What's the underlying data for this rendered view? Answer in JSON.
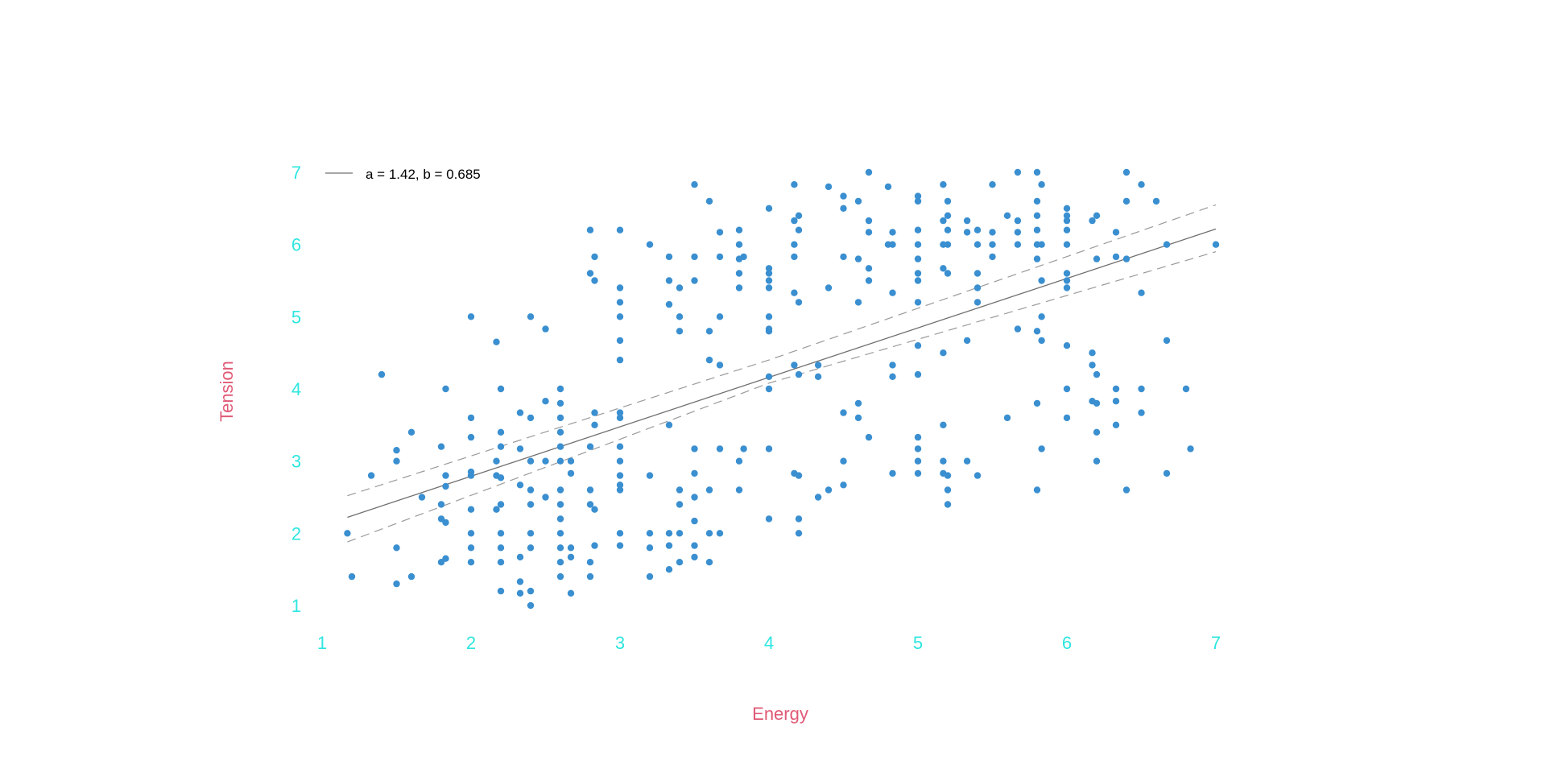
{
  "chart_data": {
    "type": "scatter",
    "title": "",
    "xlabel": "Energy",
    "ylabel": "Tension",
    "xlim": [
      1,
      7
    ],
    "ylim": [
      1,
      7
    ],
    "x_ticks": [
      "1",
      "2",
      "3",
      "4",
      "5",
      "6",
      "7"
    ],
    "y_ticks": [
      "1",
      "2",
      "3",
      "4",
      "5",
      "6",
      "7"
    ],
    "grid": false,
    "legend_position": "top-left",
    "legend": {
      "label": "a = 1.42, b = 0.685"
    },
    "colors": {
      "points": "#3a8fd0",
      "fit_line": "#707070",
      "confidence_band": "#9a9a9a",
      "tick_labels": "#2ee6e0",
      "axis_titles": "#e05a76"
    },
    "fit": {
      "intercept": 1.42,
      "slope": 0.685,
      "lower_band": [
        [
          1.17,
          1.88
        ],
        [
          4.0,
          4.08
        ],
        [
          7.0,
          5.9
        ]
      ],
      "upper_band": [
        [
          1.17,
          2.52
        ],
        [
          4.0,
          4.4
        ],
        [
          7.0,
          6.55
        ]
      ]
    },
    "points": [
      [
        1.17,
        2.0
      ],
      [
        1.2,
        1.4
      ],
      [
        1.33,
        2.8
      ],
      [
        1.4,
        4.2
      ],
      [
        1.5,
        3.15
      ],
      [
        1.5,
        3.0
      ],
      [
        1.5,
        1.8
      ],
      [
        1.5,
        1.3
      ],
      [
        1.6,
        3.4
      ],
      [
        1.6,
        1.4
      ],
      [
        1.67,
        2.5
      ],
      [
        1.8,
        3.2
      ],
      [
        1.8,
        2.4
      ],
      [
        1.8,
        2.2
      ],
      [
        1.8,
        1.6
      ],
      [
        1.83,
        4.0
      ],
      [
        1.83,
        2.8
      ],
      [
        1.83,
        2.65
      ],
      [
        1.83,
        2.15
      ],
      [
        1.83,
        1.65
      ],
      [
        2.0,
        5.0
      ],
      [
        2.0,
        3.6
      ],
      [
        2.0,
        3.33
      ],
      [
        2.0,
        2.85
      ],
      [
        2.0,
        2.8
      ],
      [
        2.0,
        2.33
      ],
      [
        2.0,
        2.0
      ],
      [
        2.0,
        1.8
      ],
      [
        2.0,
        1.6
      ],
      [
        2.17,
        4.65
      ],
      [
        2.17,
        3.0
      ],
      [
        2.17,
        2.8
      ],
      [
        2.17,
        2.33
      ],
      [
        2.2,
        4.0
      ],
      [
        2.2,
        3.4
      ],
      [
        2.2,
        3.2
      ],
      [
        2.2,
        2.77
      ],
      [
        2.2,
        2.4
      ],
      [
        2.2,
        2.0
      ],
      [
        2.2,
        1.8
      ],
      [
        2.2,
        1.6
      ],
      [
        2.2,
        1.2
      ],
      [
        2.33,
        3.67
      ],
      [
        2.33,
        3.17
      ],
      [
        2.33,
        2.67
      ],
      [
        2.33,
        1.67
      ],
      [
        2.33,
        1.33
      ],
      [
        2.33,
        1.17
      ],
      [
        2.4,
        5.0
      ],
      [
        2.4,
        3.6
      ],
      [
        2.4,
        3.0
      ],
      [
        2.4,
        2.6
      ],
      [
        2.4,
        2.4
      ],
      [
        2.4,
        2.0
      ],
      [
        2.4,
        1.8
      ],
      [
        2.4,
        1.2
      ],
      [
        2.4,
        1.0
      ],
      [
        2.5,
        4.83
      ],
      [
        2.5,
        3.83
      ],
      [
        2.5,
        3.0
      ],
      [
        2.5,
        2.5
      ],
      [
        2.6,
        4.0
      ],
      [
        2.6,
        3.8
      ],
      [
        2.6,
        3.6
      ],
      [
        2.6,
        3.4
      ],
      [
        2.6,
        3.2
      ],
      [
        2.6,
        3.0
      ],
      [
        2.6,
        2.6
      ],
      [
        2.6,
        2.4
      ],
      [
        2.6,
        2.2
      ],
      [
        2.6,
        2.0
      ],
      [
        2.6,
        1.8
      ],
      [
        2.6,
        1.6
      ],
      [
        2.6,
        1.4
      ],
      [
        2.67,
        3.0
      ],
      [
        2.67,
        2.83
      ],
      [
        2.67,
        1.8
      ],
      [
        2.67,
        1.67
      ],
      [
        2.67,
        1.17
      ],
      [
        2.8,
        6.2
      ],
      [
        2.8,
        5.6
      ],
      [
        2.8,
        3.2
      ],
      [
        2.8,
        2.6
      ],
      [
        2.8,
        2.4
      ],
      [
        2.8,
        1.6
      ],
      [
        2.8,
        1.4
      ],
      [
        2.83,
        5.83
      ],
      [
        2.83,
        5.5
      ],
      [
        2.83,
        3.67
      ],
      [
        2.83,
        3.5
      ],
      [
        2.83,
        2.33
      ],
      [
        2.83,
        1.83
      ],
      [
        3.0,
        6.2
      ],
      [
        3.0,
        5.4
      ],
      [
        3.0,
        5.2
      ],
      [
        3.0,
        5.0
      ],
      [
        3.0,
        4.67
      ],
      [
        3.0,
        4.4
      ],
      [
        3.0,
        3.67
      ],
      [
        3.0,
        3.6
      ],
      [
        3.0,
        3.2
      ],
      [
        3.0,
        3.0
      ],
      [
        3.0,
        2.8
      ],
      [
        3.0,
        2.67
      ],
      [
        3.0,
        2.6
      ],
      [
        3.0,
        2.0
      ],
      [
        3.0,
        1.83
      ],
      [
        3.2,
        6.0
      ],
      [
        3.2,
        2.8
      ],
      [
        3.2,
        2.0
      ],
      [
        3.2,
        1.8
      ],
      [
        3.2,
        1.4
      ],
      [
        3.33,
        5.83
      ],
      [
        3.33,
        5.5
      ],
      [
        3.33,
        5.17
      ],
      [
        3.33,
        3.5
      ],
      [
        3.33,
        2.0
      ],
      [
        3.33,
        1.83
      ],
      [
        3.33,
        1.5
      ],
      [
        3.4,
        5.4
      ],
      [
        3.4,
        5.0
      ],
      [
        3.4,
        4.8
      ],
      [
        3.4,
        2.6
      ],
      [
        3.4,
        2.4
      ],
      [
        3.4,
        2.0
      ],
      [
        3.4,
        1.6
      ],
      [
        3.5,
        6.83
      ],
      [
        3.5,
        5.83
      ],
      [
        3.5,
        5.5
      ],
      [
        3.5,
        3.17
      ],
      [
        3.5,
        2.83
      ],
      [
        3.5,
        2.5
      ],
      [
        3.5,
        2.17
      ],
      [
        3.5,
        1.83
      ],
      [
        3.5,
        1.67
      ],
      [
        3.6,
        6.6
      ],
      [
        3.6,
        4.8
      ],
      [
        3.6,
        4.4
      ],
      [
        3.6,
        2.6
      ],
      [
        3.6,
        2.0
      ],
      [
        3.6,
        1.6
      ],
      [
        3.67,
        6.17
      ],
      [
        3.67,
        5.83
      ],
      [
        3.67,
        5.0
      ],
      [
        3.67,
        4.33
      ],
      [
        3.67,
        3.17
      ],
      [
        3.67,
        2.0
      ],
      [
        3.8,
        6.2
      ],
      [
        3.8,
        6.0
      ],
      [
        3.8,
        5.8
      ],
      [
        3.8,
        5.6
      ],
      [
        3.8,
        5.4
      ],
      [
        3.8,
        3.0
      ],
      [
        3.8,
        2.6
      ],
      [
        3.83,
        5.83
      ],
      [
        3.83,
        3.17
      ],
      [
        4.0,
        6.5
      ],
      [
        4.0,
        5.67
      ],
      [
        4.0,
        5.6
      ],
      [
        4.0,
        5.5
      ],
      [
        4.0,
        5.4
      ],
      [
        4.0,
        5.0
      ],
      [
        4.0,
        4.83
      ],
      [
        4.0,
        4.8
      ],
      [
        4.0,
        4.17
      ],
      [
        4.0,
        4.0
      ],
      [
        4.0,
        3.17
      ],
      [
        4.0,
        2.2
      ],
      [
        4.17,
        6.83
      ],
      [
        4.17,
        6.33
      ],
      [
        4.17,
        6.0
      ],
      [
        4.17,
        5.83
      ],
      [
        4.17,
        5.33
      ],
      [
        4.17,
        4.33
      ],
      [
        4.17,
        2.83
      ],
      [
        4.2,
        6.4
      ],
      [
        4.2,
        6.2
      ],
      [
        4.2,
        5.2
      ],
      [
        4.2,
        4.2
      ],
      [
        4.2,
        2.8
      ],
      [
        4.2,
        2.2
      ],
      [
        4.2,
        2.0
      ],
      [
        4.33,
        4.33
      ],
      [
        4.33,
        4.17
      ],
      [
        4.33,
        2.5
      ],
      [
        4.4,
        6.8
      ],
      [
        4.4,
        5.4
      ],
      [
        4.4,
        2.6
      ],
      [
        4.5,
        6.67
      ],
      [
        4.5,
        6.5
      ],
      [
        4.5,
        5.83
      ],
      [
        4.5,
        3.67
      ],
      [
        4.5,
        3.0
      ],
      [
        4.5,
        2.67
      ],
      [
        4.6,
        6.6
      ],
      [
        4.6,
        5.8
      ],
      [
        4.6,
        5.2
      ],
      [
        4.6,
        3.8
      ],
      [
        4.6,
        3.6
      ],
      [
        4.67,
        7.0
      ],
      [
        4.67,
        6.33
      ],
      [
        4.67,
        6.17
      ],
      [
        4.67,
        5.67
      ],
      [
        4.67,
        5.5
      ],
      [
        4.67,
        3.33
      ],
      [
        4.8,
        6.8
      ],
      [
        4.8,
        6.0
      ],
      [
        4.83,
        6.17
      ],
      [
        4.83,
        6.0
      ],
      [
        4.83,
        5.33
      ],
      [
        4.83,
        4.33
      ],
      [
        4.83,
        4.17
      ],
      [
        4.83,
        2.83
      ],
      [
        5.0,
        6.67
      ],
      [
        5.0,
        6.6
      ],
      [
        5.0,
        6.2
      ],
      [
        5.0,
        6.0
      ],
      [
        5.0,
        5.8
      ],
      [
        5.0,
        5.6
      ],
      [
        5.0,
        5.5
      ],
      [
        5.0,
        5.2
      ],
      [
        5.0,
        4.6
      ],
      [
        5.0,
        4.2
      ],
      [
        5.0,
        3.33
      ],
      [
        5.0,
        3.17
      ],
      [
        5.0,
        3.0
      ],
      [
        5.0,
        2.83
      ],
      [
        5.17,
        6.83
      ],
      [
        5.17,
        6.33
      ],
      [
        5.17,
        6.0
      ],
      [
        5.17,
        5.67
      ],
      [
        5.17,
        4.5
      ],
      [
        5.17,
        3.5
      ],
      [
        5.17,
        3.0
      ],
      [
        5.17,
        2.83
      ],
      [
        5.2,
        6.6
      ],
      [
        5.2,
        6.4
      ],
      [
        5.2,
        6.2
      ],
      [
        5.2,
        6.0
      ],
      [
        5.2,
        5.6
      ],
      [
        5.2,
        2.8
      ],
      [
        5.2,
        2.6
      ],
      [
        5.2,
        2.4
      ],
      [
        5.33,
        6.33
      ],
      [
        5.33,
        6.17
      ],
      [
        5.33,
        4.67
      ],
      [
        5.33,
        3.0
      ],
      [
        5.4,
        6.2
      ],
      [
        5.4,
        6.0
      ],
      [
        5.4,
        5.6
      ],
      [
        5.4,
        5.4
      ],
      [
        5.4,
        5.2
      ],
      [
        5.4,
        2.8
      ],
      [
        5.5,
        6.83
      ],
      [
        5.5,
        6.17
      ],
      [
        5.5,
        6.0
      ],
      [
        5.5,
        5.83
      ],
      [
        5.6,
        6.4
      ],
      [
        5.6,
        3.6
      ],
      [
        5.67,
        7.0
      ],
      [
        5.67,
        6.33
      ],
      [
        5.67,
        6.17
      ],
      [
        5.67,
        6.0
      ],
      [
        5.67,
        4.83
      ],
      [
        5.8,
        7.0
      ],
      [
        5.8,
        6.6
      ],
      [
        5.8,
        6.4
      ],
      [
        5.8,
        6.2
      ],
      [
        5.8,
        6.0
      ],
      [
        5.8,
        5.8
      ],
      [
        5.8,
        4.8
      ],
      [
        5.8,
        3.8
      ],
      [
        5.8,
        2.6
      ],
      [
        5.83,
        6.83
      ],
      [
        5.83,
        6.0
      ],
      [
        5.83,
        5.5
      ],
      [
        5.83,
        5.0
      ],
      [
        5.83,
        4.67
      ],
      [
        5.83,
        3.17
      ],
      [
        6.0,
        6.5
      ],
      [
        6.0,
        6.4
      ],
      [
        6.0,
        6.33
      ],
      [
        6.0,
        6.2
      ],
      [
        6.0,
        6.0
      ],
      [
        6.0,
        5.6
      ],
      [
        6.0,
        5.5
      ],
      [
        6.0,
        5.4
      ],
      [
        6.0,
        4.6
      ],
      [
        6.0,
        4.0
      ],
      [
        6.0,
        3.6
      ],
      [
        6.17,
        6.33
      ],
      [
        6.17,
        4.5
      ],
      [
        6.17,
        4.33
      ],
      [
        6.17,
        3.83
      ],
      [
        6.2,
        6.4
      ],
      [
        6.2,
        5.8
      ],
      [
        6.2,
        4.2
      ],
      [
        6.2,
        3.8
      ],
      [
        6.2,
        3.4
      ],
      [
        6.2,
        3.0
      ],
      [
        6.33,
        6.17
      ],
      [
        6.33,
        5.83
      ],
      [
        6.33,
        4.0
      ],
      [
        6.33,
        3.83
      ],
      [
        6.33,
        3.5
      ],
      [
        6.4,
        7.0
      ],
      [
        6.4,
        6.6
      ],
      [
        6.4,
        5.8
      ],
      [
        6.4,
        2.6
      ],
      [
        6.5,
        6.83
      ],
      [
        6.5,
        5.33
      ],
      [
        6.5,
        4.0
      ],
      [
        6.5,
        3.67
      ],
      [
        6.6,
        6.6
      ],
      [
        6.67,
        6.0
      ],
      [
        6.67,
        4.67
      ],
      [
        6.67,
        2.83
      ],
      [
        6.8,
        4.0
      ],
      [
        6.83,
        3.17
      ],
      [
        7.0,
        6.0
      ]
    ]
  }
}
